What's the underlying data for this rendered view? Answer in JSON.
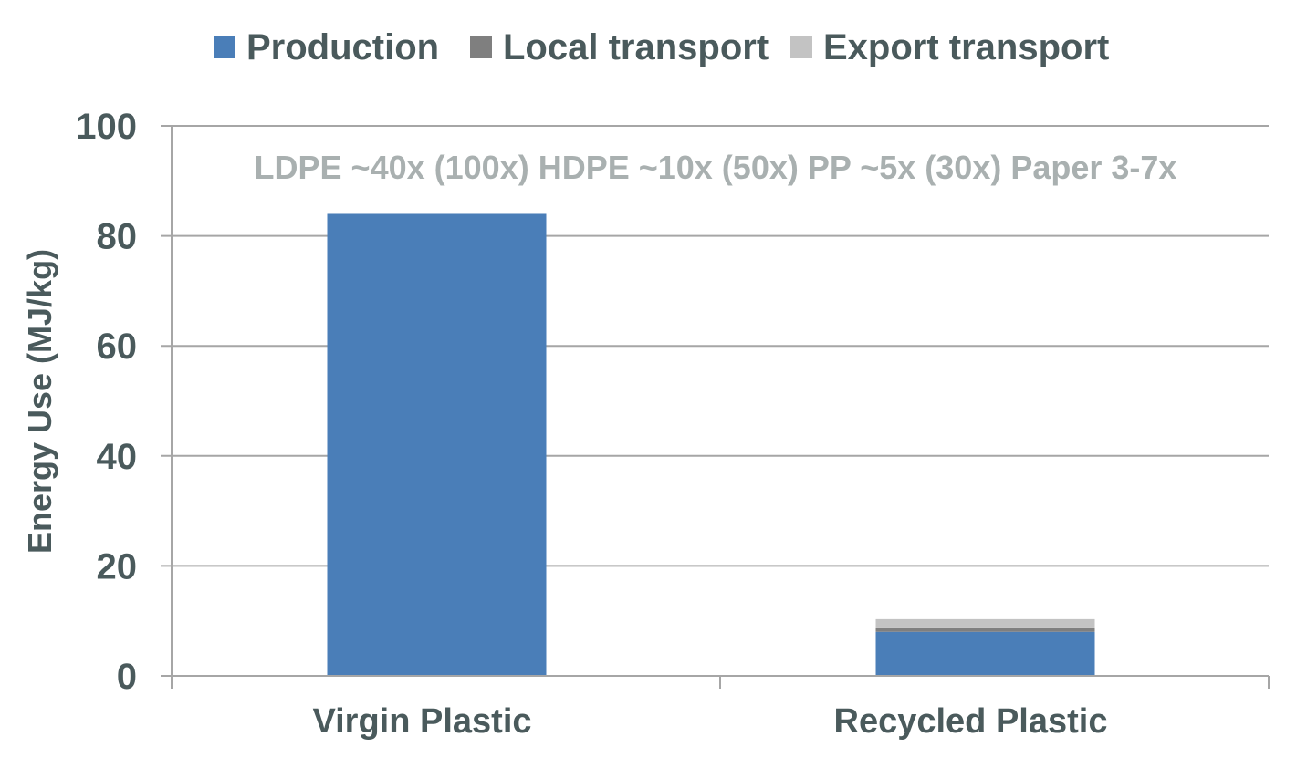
{
  "chart_data": {
    "type": "bar",
    "stacked": true,
    "categories": [
      "Virgin Plastic",
      "Recycled Plastic"
    ],
    "series": [
      {
        "name": "Production",
        "values": [
          84,
          8
        ],
        "color": "#4a7eb8"
      },
      {
        "name": "Local transport",
        "values": [
          0,
          0.8
        ],
        "color": "#7f7f7f"
      },
      {
        "name": "Export transport",
        "values": [
          0,
          1.5
        ],
        "color": "#c3c3c3"
      }
    ],
    "ylabel": "Energy Use (MJ/kg)",
    "xlabel": "",
    "ylim": [
      0,
      100
    ],
    "yticks": [
      0,
      20,
      40,
      60,
      80,
      100
    ],
    "grid": true,
    "legend_position": "top",
    "annotation": "LDPE ~40x (100x) HDPE ~10x (50x) PP ~5x (30x) Paper 3-7x"
  }
}
